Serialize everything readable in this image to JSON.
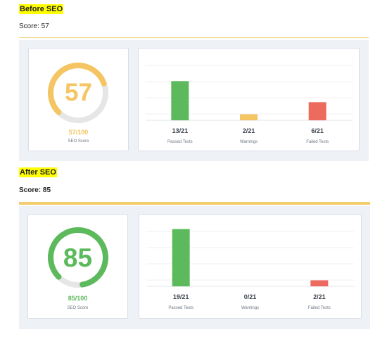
{
  "reports": [
    {
      "heading": "Before SEO",
      "score_line": "Score: 57",
      "gauge": {
        "score_text": "57",
        "score_fraction": "57/100",
        "caption": "SEO Score",
        "percent": 57,
        "color": "#f5c563"
      },
      "tests": {
        "total": 21,
        "items": [
          {
            "value_text": "13/21",
            "label": "Passed Tests",
            "count": 13,
            "color": "#5cba5c"
          },
          {
            "value_text": "2/21",
            "label": "Warnings",
            "count": 2,
            "color": "#f5c563"
          },
          {
            "value_text": "6/21",
            "label": "Failed Tests",
            "count": 6,
            "color": "#ec6b5e"
          }
        ]
      }
    },
    {
      "heading": "After SEO",
      "score_line": "Score: 85",
      "gauge": {
        "score_text": "85",
        "score_fraction": "85/100",
        "caption": "SEO Score",
        "percent": 85,
        "color": "#5cba5c"
      },
      "tests": {
        "total": 21,
        "items": [
          {
            "value_text": "19/21",
            "label": "Passed Tests",
            "count": 19,
            "color": "#5cba5c"
          },
          {
            "value_text": "0/21",
            "label": "Warnings",
            "count": 0,
            "color": "#f5c563"
          },
          {
            "value_text": "2/21",
            "label": "Failed Tests",
            "count": 2,
            "color": "#ec6b5e"
          }
        ]
      }
    }
  ],
  "colors": {
    "track": "#e6e6e6",
    "panel_background": "#eef1f6",
    "heading_highlight": "#ffff00",
    "divider": "#f3cc6c"
  }
}
